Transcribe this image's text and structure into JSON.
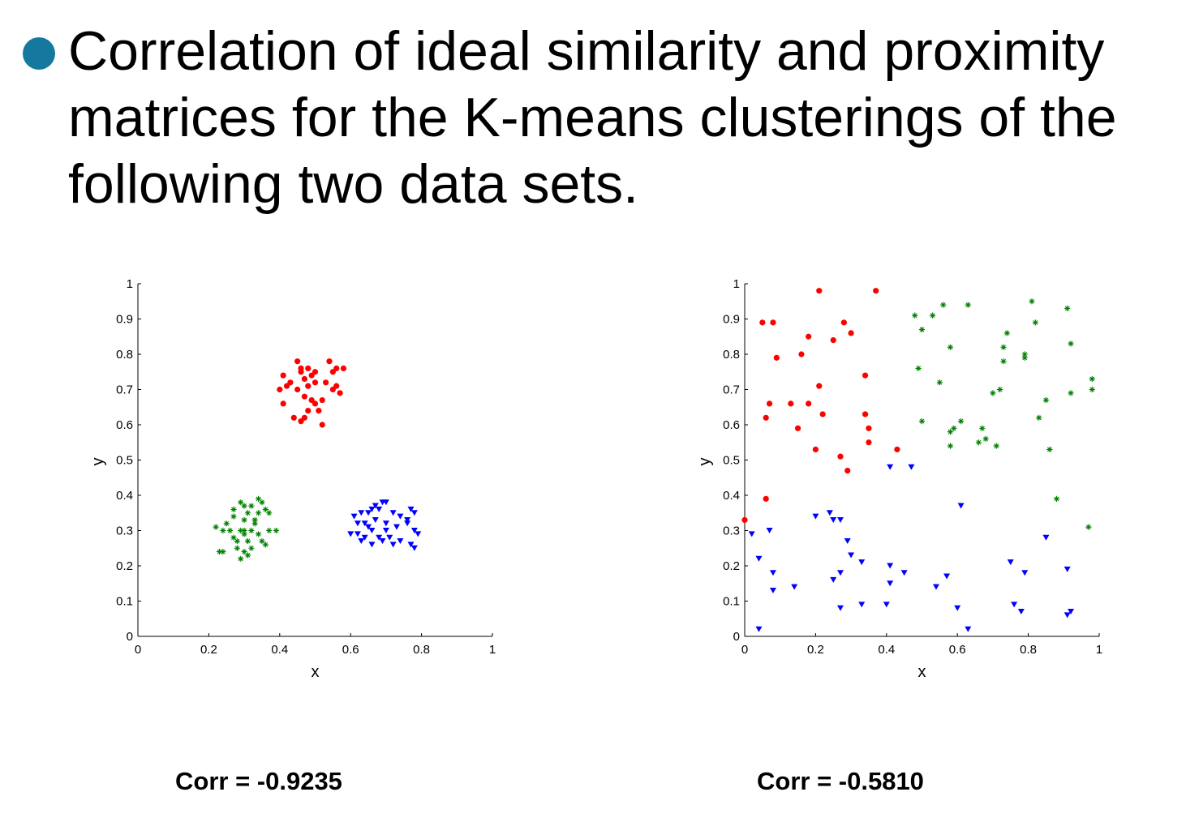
{
  "bullet": {
    "icon": "bullet-circle-icon",
    "color": "#15799f",
    "text": "Correlation of ideal similarity and proximity matrices for the K-means clusterings of the following two data sets."
  },
  "chart_data": [
    {
      "type": "scatter",
      "xlabel": "x",
      "ylabel": "y",
      "xlim": [
        0,
        1
      ],
      "ylim": [
        0,
        1
      ],
      "x_ticks": [
        "0",
        "0.2",
        "0.4",
        "0.6",
        "0.8",
        "1"
      ],
      "y_ticks": [
        "0",
        "0.1",
        "0.2",
        "0.3",
        "0.4",
        "0.5",
        "0.6",
        "0.7",
        "0.8",
        "0.9",
        "1"
      ],
      "caption": "Corr = -0.9235",
      "series": [
        {
          "marker": "circle",
          "color": "#ff0000",
          "points": [
            [
              0.45,
              0.78
            ],
            [
              0.48,
              0.76
            ],
            [
              0.54,
              0.78
            ],
            [
              0.56,
              0.76
            ],
            [
              0.58,
              0.76
            ],
            [
              0.55,
              0.75
            ],
            [
              0.46,
              0.75
            ],
            [
              0.41,
              0.74
            ],
            [
              0.43,
              0.72
            ],
            [
              0.47,
              0.73
            ],
            [
              0.49,
              0.74
            ],
            [
              0.5,
              0.75
            ],
            [
              0.53,
              0.72
            ],
            [
              0.56,
              0.71
            ],
            [
              0.57,
              0.69
            ],
            [
              0.45,
              0.7
            ],
            [
              0.48,
              0.71
            ],
            [
              0.42,
              0.71
            ],
            [
              0.4,
              0.7
            ],
            [
              0.41,
              0.66
            ],
            [
              0.47,
              0.68
            ],
            [
              0.49,
              0.67
            ],
            [
              0.52,
              0.67
            ],
            [
              0.5,
              0.66
            ],
            [
              0.48,
              0.64
            ],
            [
              0.51,
              0.64
            ],
            [
              0.44,
              0.62
            ],
            [
              0.46,
              0.61
            ],
            [
              0.47,
              0.62
            ],
            [
              0.52,
              0.6
            ],
            [
              0.55,
              0.7
            ],
            [
              0.46,
              0.76
            ],
            [
              0.5,
              0.72
            ]
          ]
        },
        {
          "marker": "star",
          "color": "#008000",
          "points": [
            [
              0.34,
              0.39
            ],
            [
              0.35,
              0.38
            ],
            [
              0.32,
              0.37
            ],
            [
              0.29,
              0.38
            ],
            [
              0.3,
              0.37
            ],
            [
              0.36,
              0.36
            ],
            [
              0.37,
              0.35
            ],
            [
              0.34,
              0.35
            ],
            [
              0.31,
              0.35
            ],
            [
              0.27,
              0.36
            ],
            [
              0.27,
              0.34
            ],
            [
              0.3,
              0.33
            ],
            [
              0.33,
              0.33
            ],
            [
              0.25,
              0.32
            ],
            [
              0.22,
              0.31
            ],
            [
              0.24,
              0.3
            ],
            [
              0.26,
              0.3
            ],
            [
              0.29,
              0.3
            ],
            [
              0.3,
              0.3
            ],
            [
              0.32,
              0.3
            ],
            [
              0.37,
              0.3
            ],
            [
              0.39,
              0.3
            ],
            [
              0.34,
              0.29
            ],
            [
              0.27,
              0.28
            ],
            [
              0.31,
              0.27
            ],
            [
              0.35,
              0.27
            ],
            [
              0.36,
              0.26
            ],
            [
              0.28,
              0.25
            ],
            [
              0.32,
              0.25
            ],
            [
              0.3,
              0.24
            ],
            [
              0.31,
              0.23
            ],
            [
              0.29,
              0.22
            ],
            [
              0.23,
              0.24
            ],
            [
              0.24,
              0.24
            ],
            [
              0.28,
              0.27
            ],
            [
              0.3,
              0.29
            ],
            [
              0.33,
              0.32
            ]
          ]
        },
        {
          "marker": "triangle-down",
          "color": "#0000ff",
          "points": [
            [
              0.69,
              0.38
            ],
            [
              0.67,
              0.37
            ],
            [
              0.7,
              0.38
            ],
            [
              0.66,
              0.36
            ],
            [
              0.68,
              0.36
            ],
            [
              0.63,
              0.35
            ],
            [
              0.65,
              0.35
            ],
            [
              0.61,
              0.34
            ],
            [
              0.62,
              0.32
            ],
            [
              0.64,
              0.32
            ],
            [
              0.67,
              0.33
            ],
            [
              0.72,
              0.35
            ],
            [
              0.74,
              0.34
            ],
            [
              0.77,
              0.36
            ],
            [
              0.78,
              0.35
            ],
            [
              0.76,
              0.32
            ],
            [
              0.73,
              0.31
            ],
            [
              0.7,
              0.3
            ],
            [
              0.66,
              0.3
            ],
            [
              0.62,
              0.29
            ],
            [
              0.6,
              0.29
            ],
            [
              0.64,
              0.28
            ],
            [
              0.68,
              0.28
            ],
            [
              0.69,
              0.27
            ],
            [
              0.71,
              0.28
            ],
            [
              0.74,
              0.27
            ],
            [
              0.63,
              0.27
            ],
            [
              0.66,
              0.26
            ],
            [
              0.72,
              0.26
            ],
            [
              0.77,
              0.26
            ],
            [
              0.78,
              0.25
            ],
            [
              0.79,
              0.29
            ],
            [
              0.78,
              0.3
            ],
            [
              0.76,
              0.33
            ],
            [
              0.7,
              0.32
            ],
            [
              0.65,
              0.31
            ]
          ]
        }
      ]
    },
    {
      "type": "scatter",
      "xlabel": "x",
      "ylabel": "y",
      "xlim": [
        0,
        1
      ],
      "ylim": [
        0,
        1
      ],
      "x_ticks": [
        "0",
        "0.2",
        "0.4",
        "0.6",
        "0.8",
        "1"
      ],
      "y_ticks": [
        "0",
        "0.1",
        "0.2",
        "0.3",
        "0.4",
        "0.5",
        "0.6",
        "0.7",
        "0.8",
        "0.9",
        "1"
      ],
      "caption": "Corr = -0.5810",
      "series": [
        {
          "marker": "circle",
          "color": "#ff0000",
          "points": [
            [
              0.21,
              0.98
            ],
            [
              0.37,
              0.98
            ],
            [
              0.05,
              0.89
            ],
            [
              0.08,
              0.89
            ],
            [
              0.28,
              0.89
            ],
            [
              0.3,
              0.86
            ],
            [
              0.18,
              0.85
            ],
            [
              0.25,
              0.84
            ],
            [
              0.09,
              0.79
            ],
            [
              0.16,
              0.8
            ],
            [
              0.21,
              0.71
            ],
            [
              0.34,
              0.74
            ],
            [
              0.07,
              0.66
            ],
            [
              0.13,
              0.66
            ],
            [
              0.18,
              0.66
            ],
            [
              0.22,
              0.63
            ],
            [
              0.06,
              0.62
            ],
            [
              0.15,
              0.59
            ],
            [
              0.34,
              0.63
            ],
            [
              0.35,
              0.59
            ],
            [
              0.35,
              0.55
            ],
            [
              0.43,
              0.53
            ],
            [
              0.2,
              0.53
            ],
            [
              0.27,
              0.51
            ],
            [
              0.29,
              0.47
            ],
            [
              0.06,
              0.39
            ],
            [
              0.0,
              0.33
            ]
          ]
        },
        {
          "marker": "star",
          "color": "#008000",
          "points": [
            [
              0.56,
              0.94
            ],
            [
              0.63,
              0.94
            ],
            [
              0.81,
              0.95
            ],
            [
              0.91,
              0.93
            ],
            [
              0.48,
              0.91
            ],
            [
              0.53,
              0.91
            ],
            [
              0.82,
              0.89
            ],
            [
              0.5,
              0.87
            ],
            [
              0.74,
              0.86
            ],
            [
              0.58,
              0.82
            ],
            [
              0.73,
              0.82
            ],
            [
              0.92,
              0.83
            ],
            [
              0.73,
              0.78
            ],
            [
              0.79,
              0.79
            ],
            [
              0.79,
              0.8
            ],
            [
              0.49,
              0.76
            ],
            [
              0.55,
              0.72
            ],
            [
              0.98,
              0.73
            ],
            [
              0.98,
              0.7
            ],
            [
              0.7,
              0.69
            ],
            [
              0.72,
              0.7
            ],
            [
              0.92,
              0.69
            ],
            [
              0.85,
              0.67
            ],
            [
              0.5,
              0.61
            ],
            [
              0.61,
              0.61
            ],
            [
              0.83,
              0.62
            ],
            [
              0.58,
              0.58
            ],
            [
              0.59,
              0.59
            ],
            [
              0.67,
              0.59
            ],
            [
              0.68,
              0.56
            ],
            [
              0.58,
              0.54
            ],
            [
              0.66,
              0.55
            ],
            [
              0.71,
              0.54
            ],
            [
              0.86,
              0.53
            ],
            [
              0.88,
              0.39
            ],
            [
              0.97,
              0.31
            ]
          ]
        },
        {
          "marker": "triangle-down",
          "color": "#0000ff",
          "points": [
            [
              0.41,
              0.48
            ],
            [
              0.47,
              0.48
            ],
            [
              0.61,
              0.37
            ],
            [
              0.2,
              0.34
            ],
            [
              0.24,
              0.35
            ],
            [
              0.25,
              0.33
            ],
            [
              0.27,
              0.33
            ],
            [
              0.02,
              0.29
            ],
            [
              0.07,
              0.3
            ],
            [
              0.29,
              0.27
            ],
            [
              0.3,
              0.23
            ],
            [
              0.85,
              0.28
            ],
            [
              0.04,
              0.22
            ],
            [
              0.33,
              0.21
            ],
            [
              0.41,
              0.2
            ],
            [
              0.75,
              0.21
            ],
            [
              0.91,
              0.19
            ],
            [
              0.08,
              0.18
            ],
            [
              0.27,
              0.18
            ],
            [
              0.45,
              0.18
            ],
            [
              0.57,
              0.17
            ],
            [
              0.79,
              0.18
            ],
            [
              0.25,
              0.16
            ],
            [
              0.14,
              0.14
            ],
            [
              0.08,
              0.13
            ],
            [
              0.41,
              0.15
            ],
            [
              0.54,
              0.14
            ],
            [
              0.33,
              0.09
            ],
            [
              0.4,
              0.09
            ],
            [
              0.27,
              0.08
            ],
            [
              0.6,
              0.08
            ],
            [
              0.76,
              0.09
            ],
            [
              0.78,
              0.07
            ],
            [
              0.92,
              0.07
            ],
            [
              0.91,
              0.06
            ],
            [
              0.04,
              0.02
            ],
            [
              0.63,
              0.02
            ]
          ]
        }
      ]
    }
  ]
}
